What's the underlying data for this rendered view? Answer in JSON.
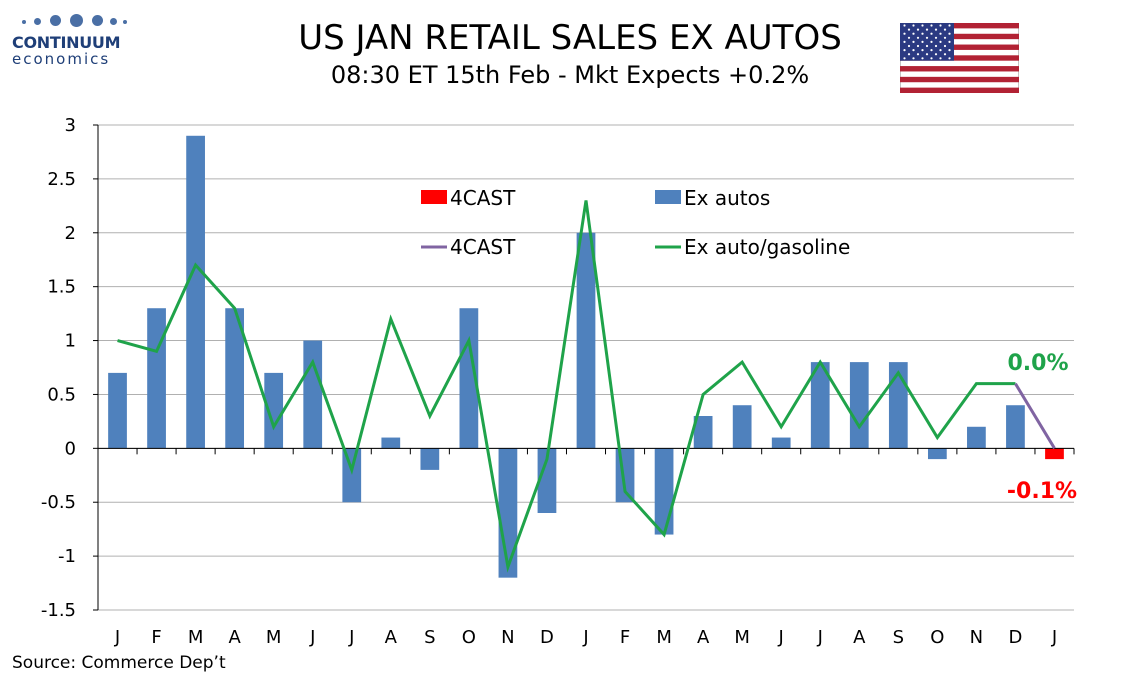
{
  "logo": {
    "name": "CONTINUUM",
    "sub": "economics"
  },
  "title": "US JAN RETAIL SALES EX AUTOS",
  "subtitle": "08:30 ET 15th Feb - Mkt Expects +0.2%",
  "source": "Source: Commerce Dep’t",
  "flag_icon": "us-flag-icon",
  "colors": {
    "bar": "#4f81bd",
    "line": "#1fa34a",
    "forecast_bar": "#ff0000",
    "forecast_line": "#8064a2",
    "grid": "#b0b0b0"
  },
  "chart_data": {
    "type": "bar",
    "categories": [
      "J",
      "F",
      "M",
      "A",
      "M",
      "J",
      "J",
      "A",
      "S",
      "O",
      "N",
      "D",
      "J",
      "F",
      "M",
      "A",
      "M",
      "J",
      "J",
      "A",
      "S",
      "O",
      "N",
      "D",
      "J"
    ],
    "ylim": [
      -1.5,
      3
    ],
    "yticks": [
      3,
      2.5,
      2,
      1.5,
      1,
      0.5,
      0,
      -0.5,
      -1,
      -1.5
    ],
    "ytick_labels": [
      "3",
      "2.5",
      "2",
      "1.5",
      "1",
      "0.5",
      "0",
      "-0.5",
      "-1",
      "-1.5"
    ],
    "series": [
      {
        "name": "Ex autos",
        "type": "bar",
        "values": [
          0.7,
          1.3,
          2.9,
          1.3,
          0.7,
          1.0,
          -0.5,
          0.1,
          -0.2,
          1.3,
          -1.2,
          -0.6,
          2.0,
          -0.5,
          -0.8,
          0.3,
          0.4,
          0.1,
          0.8,
          0.8,
          0.8,
          -0.1,
          0.2,
          0.4,
          null
        ]
      },
      {
        "name": "4CAST",
        "type": "bar",
        "values": [
          null,
          null,
          null,
          null,
          null,
          null,
          null,
          null,
          null,
          null,
          null,
          null,
          null,
          null,
          null,
          null,
          null,
          null,
          null,
          null,
          null,
          null,
          null,
          null,
          -0.1
        ]
      },
      {
        "name": "Ex auto/gasoline",
        "type": "line",
        "values": [
          1.0,
          0.9,
          1.7,
          1.3,
          0.2,
          0.8,
          -0.2,
          1.2,
          0.3,
          1.0,
          -1.1,
          -0.1,
          2.3,
          -0.4,
          -0.8,
          0.5,
          0.8,
          0.2,
          0.8,
          0.2,
          0.7,
          0.1,
          0.6,
          0.6,
          null
        ]
      },
      {
        "name": "4CAST",
        "type": "line",
        "values": [
          null,
          null,
          null,
          null,
          null,
          null,
          null,
          null,
          null,
          null,
          null,
          null,
          null,
          null,
          null,
          null,
          null,
          null,
          null,
          null,
          null,
          null,
          null,
          0.6,
          0.0
        ]
      }
    ],
    "legend": [
      {
        "label": "4CAST",
        "kind": "bar",
        "color": "#ff0000"
      },
      {
        "label": "Ex autos",
        "kind": "bar",
        "color": "#4f81bd"
      },
      {
        "label": "4CAST",
        "kind": "line",
        "color": "#8064a2"
      },
      {
        "label": "Ex auto/gasoline",
        "kind": "line",
        "color": "#1fa34a"
      }
    ],
    "annotations": [
      {
        "text": "0.0%",
        "color": "#1fa34a"
      },
      {
        "text": "-0.1%",
        "color": "#ff0000"
      }
    ],
    "grid": true
  }
}
